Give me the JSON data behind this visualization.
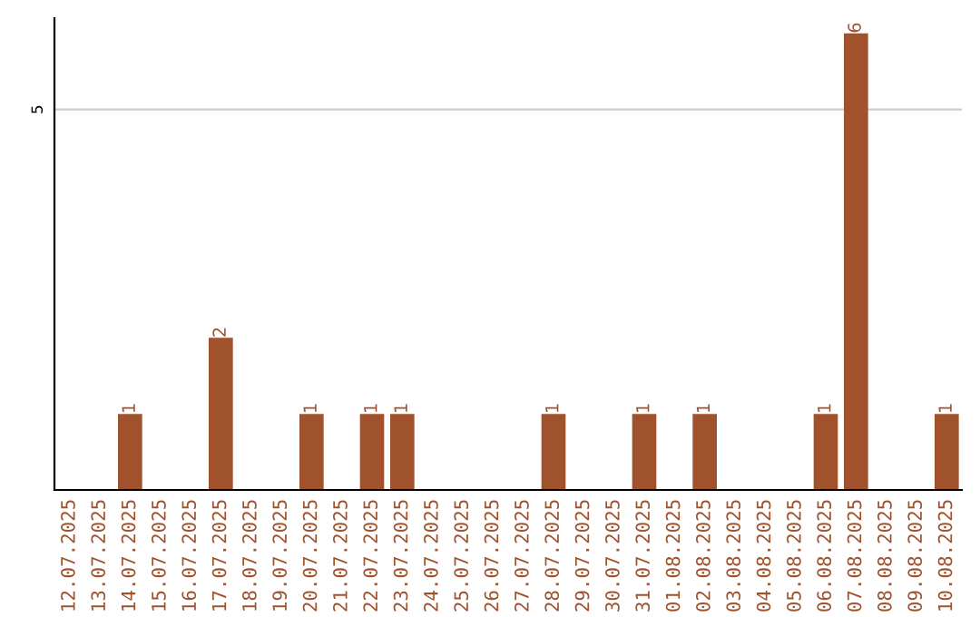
{
  "chart_data": {
    "type": "bar",
    "categories": [
      "12.07.2025",
      "13.07.2025",
      "14.07.2025",
      "15.07.2025",
      "16.07.2025",
      "17.07.2025",
      "18.07.2025",
      "19.07.2025",
      "20.07.2025",
      "21.07.2025",
      "22.07.2025",
      "23.07.2025",
      "24.07.2025",
      "25.07.2025",
      "26.07.2025",
      "27.07.2025",
      "28.07.2025",
      "29.07.2025",
      "30.07.2025",
      "31.07.2025",
      "01.08.2025",
      "02.08.2025",
      "03.08.2025",
      "04.08.2025",
      "05.08.2025",
      "06.08.2025",
      "07.08.2025",
      "08.08.2025",
      "09.08.2025",
      "10.08.2025"
    ],
    "values": [
      0,
      0,
      1,
      0,
      0,
      2,
      0,
      0,
      1,
      0,
      1,
      1,
      0,
      0,
      0,
      0,
      1,
      0,
      0,
      1,
      0,
      1,
      0,
      0,
      0,
      1,
      6,
      0,
      0,
      1
    ],
    "value_labels": [
      null,
      null,
      "1",
      null,
      null,
      "2",
      null,
      null,
      "1",
      null,
      "1",
      "1",
      null,
      null,
      null,
      null,
      "1",
      null,
      null,
      "1",
      null,
      "1",
      null,
      null,
      null,
      "1",
      "6",
      null,
      null,
      "1"
    ],
    "color": "#a0522d",
    "ylim": [
      0,
      6.2
    ],
    "yticks": [
      5
    ],
    "grid": "y",
    "legend": false
  }
}
